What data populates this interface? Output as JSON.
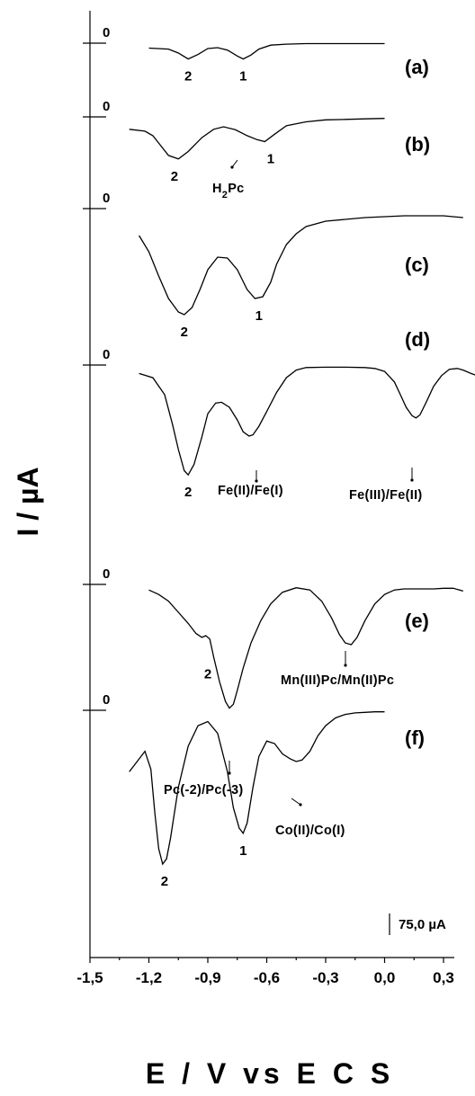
{
  "chart_data": {
    "type": "line",
    "xlabel": "E / V vs E C S",
    "ylabel": "I / µA",
    "xlim": [
      -1.5,
      0.5
    ],
    "x_ticks": [
      "-1,5",
      "-1,2",
      "-0,9",
      "-0,6",
      "-0,3",
      "0,0",
      "0,3"
    ],
    "x_tick_values": [
      -1.5,
      -1.2,
      -0.9,
      -0.6,
      -0.3,
      0.0,
      0.3
    ],
    "scale_bar": "75,0 µA",
    "zero_label": "0",
    "series": [
      {
        "name": "(a)",
        "x": [
          -1.2,
          -1.1,
          -1.05,
          -1.0,
          -0.95,
          -0.9,
          -0.85,
          -0.8,
          -0.75,
          -0.72,
          -0.68,
          -0.64,
          -0.58,
          -0.5,
          -0.4,
          -0.3,
          -0.2,
          -0.1,
          0.0
        ],
        "y": [
          -10,
          -12,
          -20,
          -32,
          -23,
          -11,
          -9,
          -14,
          -26,
          -32,
          -24,
          -12,
          -4,
          -2,
          -1,
          -1,
          -1,
          -1,
          -1
        ],
        "peak_labels": [
          {
            "text": "2",
            "x": -1.0
          },
          {
            "text": "1",
            "x": -0.72
          }
        ],
        "annotations": []
      },
      {
        "name": "(b)",
        "x": [
          -1.3,
          -1.22,
          -1.18,
          -1.14,
          -1.1,
          -1.05,
          -1.0,
          -0.93,
          -0.87,
          -0.82,
          -0.76,
          -0.7,
          -0.65,
          -0.61,
          -0.56,
          -0.5,
          -0.4,
          -0.3,
          -0.2,
          -0.1,
          0.0
        ],
        "y": [
          -25,
          -29,
          -38,
          -58,
          -78,
          -85,
          -70,
          -42,
          -25,
          -20,
          -26,
          -38,
          -46,
          -50,
          -35,
          -18,
          -10,
          -6,
          -5,
          -4,
          -3
        ],
        "peak_labels": [
          {
            "text": "2",
            "x": -1.07
          },
          {
            "text": "1",
            "x": -0.58
          }
        ],
        "annotations": [
          {
            "text": "H2Pc",
            "x": -0.79
          }
        ]
      },
      {
        "name": "(c)",
        "x": [
          -1.25,
          -1.2,
          -1.15,
          -1.1,
          -1.05,
          -1.02,
          -0.98,
          -0.94,
          -0.9,
          -0.85,
          -0.8,
          -0.75,
          -0.7,
          -0.66,
          -0.62,
          -0.58,
          -0.55,
          -0.5,
          -0.45,
          -0.4,
          -0.3,
          -0.2,
          -0.1,
          0.0,
          0.1,
          0.2,
          0.3,
          0.4
        ],
        "y": [
          -30,
          -48,
          -75,
          -100,
          -115,
          -118,
          -110,
          -90,
          -68,
          -54,
          -55,
          -68,
          -90,
          -100,
          -98,
          -82,
          -62,
          -40,
          -28,
          -20,
          -14,
          -12,
          -10,
          -9,
          -8,
          -8,
          -8,
          -10
        ],
        "peak_labels": [
          {
            "text": "2",
            "x": -1.02
          },
          {
            "text": "1",
            "x": -0.64
          }
        ],
        "annotations": []
      },
      {
        "name": "(d)",
        "x": [
          -1.25,
          -1.18,
          -1.12,
          -1.08,
          -1.05,
          -1.02,
          -1.0,
          -0.97,
          -0.93,
          -0.9,
          -0.86,
          -0.83,
          -0.79,
          -0.75,
          -0.72,
          -0.69,
          -0.67,
          -0.64,
          -0.6,
          -0.55,
          -0.5,
          -0.45,
          -0.4,
          -0.3,
          -0.2,
          -0.1,
          -0.05,
          0.0,
          0.05,
          0.08,
          0.11,
          0.14,
          0.16,
          0.18,
          0.21,
          0.25,
          0.29,
          0.33,
          0.37,
          0.4,
          0.44,
          0.5
        ],
        "y": [
          -20,
          -30,
          -70,
          -140,
          -200,
          -250,
          -260,
          -235,
          -170,
          -115,
          -90,
          -88,
          -100,
          -130,
          -158,
          -168,
          -165,
          -145,
          -110,
          -65,
          -30,
          -12,
          -6,
          -5,
          -5,
          -6,
          -8,
          -15,
          -40,
          -70,
          -100,
          -120,
          -125,
          -118,
          -90,
          -50,
          -25,
          -10,
          -8,
          -12,
          -20,
          -30
        ],
        "peak_labels": [
          {
            "text": "2",
            "x": -1.0
          }
        ],
        "annotations": [
          {
            "text": "Fe(II)/Fe(I)",
            "x": -0.67
          },
          {
            "text": "Fe(III)/Fe(II)",
            "x": 0.16
          }
        ]
      },
      {
        "name": "(e)",
        "x": [
          -1.2,
          -1.15,
          -1.1,
          -1.05,
          -1.0,
          -0.96,
          -0.93,
          -0.91,
          -0.89,
          -0.87,
          -0.84,
          -0.81,
          -0.79,
          -0.77,
          -0.75,
          -0.72,
          -0.68,
          -0.63,
          -0.58,
          -0.52,
          -0.45,
          -0.38,
          -0.32,
          -0.27,
          -0.23,
          -0.2,
          -0.17,
          -0.14,
          -0.1,
          -0.05,
          0.0,
          0.05,
          0.1,
          0.15,
          0.2,
          0.25,
          0.3,
          0.35,
          0.4
        ],
        "y": [
          -10,
          -18,
          -30,
          -50,
          -70,
          -88,
          -95,
          -92,
          -98,
          -130,
          -175,
          -210,
          -222,
          -215,
          -190,
          -150,
          -105,
          -65,
          -35,
          -14,
          -6,
          -10,
          -30,
          -60,
          -90,
          -105,
          -108,
          -95,
          -65,
          -35,
          -18,
          -10,
          -8,
          -8,
          -8,
          -8,
          -7,
          -7,
          -12
        ],
        "peak_labels": [
          {
            "text": "2",
            "x": -0.9
          }
        ],
        "annotations": [
          {
            "text": "Mn(III)Pc/Mn(II)Pc",
            "x": -0.17
          },
          {
            "text": "Pc(-2)/Pc(-3)",
            "x": -0.79
          }
        ]
      },
      {
        "name": "(f)",
        "x": [
          -1.3,
          -1.26,
          -1.22,
          -1.19,
          -1.17,
          -1.15,
          -1.13,
          -1.11,
          -1.09,
          -1.05,
          -1.0,
          -0.95,
          -0.9,
          -0.85,
          -0.8,
          -0.77,
          -0.74,
          -0.72,
          -0.7,
          -0.67,
          -0.64,
          -0.6,
          -0.56,
          -0.52,
          -0.48,
          -0.45,
          -0.42,
          -0.38,
          -0.34,
          -0.3,
          -0.25,
          -0.2,
          -0.15,
          -0.1,
          -0.05,
          0.0
        ],
        "y": [
          -120,
          -100,
          -80,
          -115,
          -200,
          -270,
          -300,
          -290,
          -250,
          -150,
          -70,
          -30,
          -22,
          -45,
          -120,
          -190,
          -230,
          -240,
          -220,
          -150,
          -90,
          -60,
          -65,
          -85,
          -95,
          -100,
          -97,
          -80,
          -50,
          -30,
          -15,
          -8,
          -5,
          -4,
          -3,
          -3
        ],
        "peak_labels": [
          {
            "text": "2",
            "x": -1.12
          },
          {
            "text": "1",
            "x": -0.72
          }
        ],
        "annotations": [
          {
            "text": "Co(II)/Co(I)",
            "x": -0.47
          }
        ]
      }
    ]
  }
}
